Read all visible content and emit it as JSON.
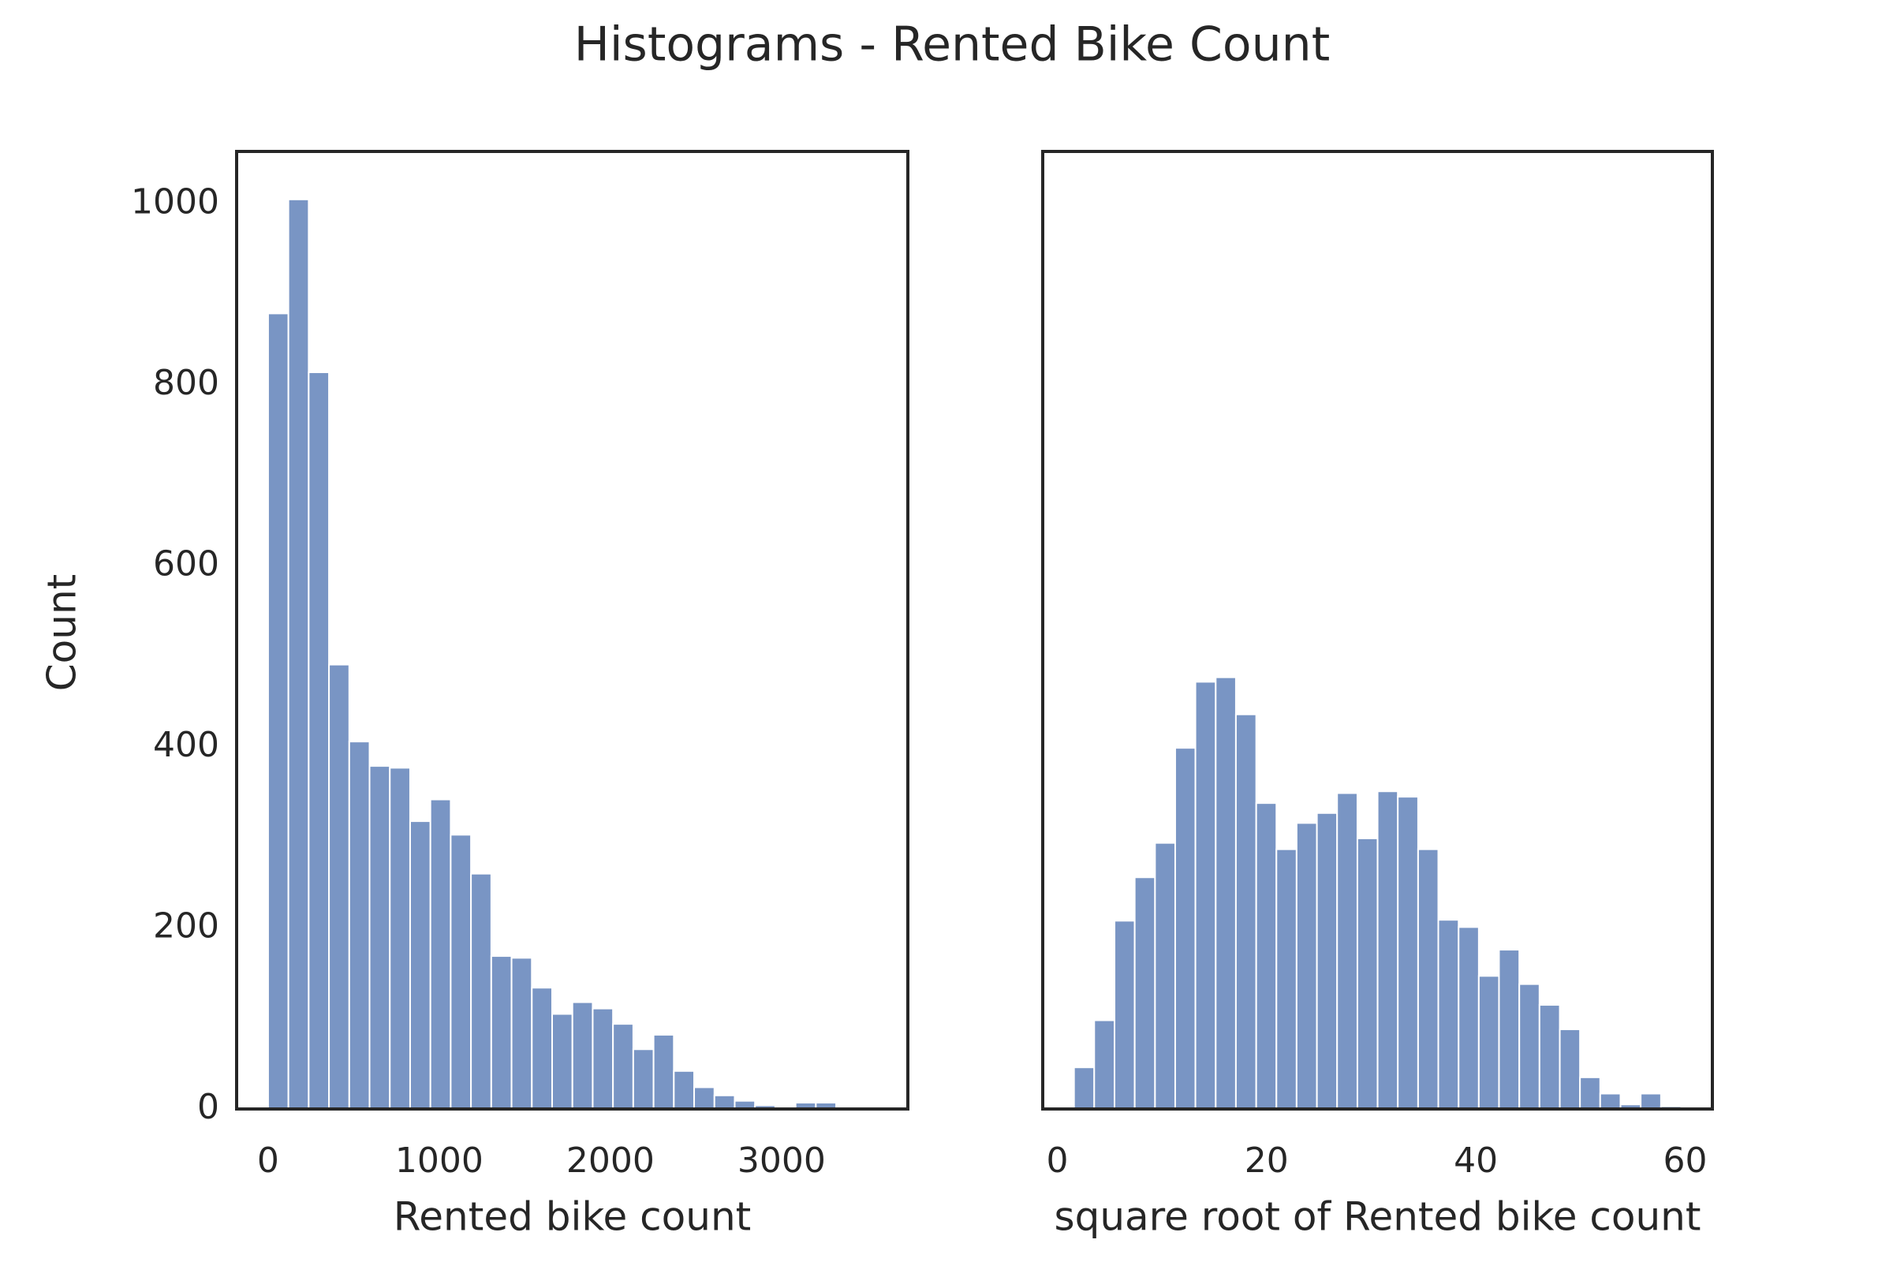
{
  "title": "Histograms - Rented Bike Count",
  "chart_data": [
    {
      "type": "histogram",
      "xlabel": "Rented bike count",
      "ylabel": "Count",
      "color": "#7995c4",
      "bins": [
        0,
        118.53,
        237.07,
        355.6,
        474.13,
        592.67,
        711.2,
        829.73,
        948.27,
        1066.8,
        1185.33,
        1303.87,
        1422.4,
        1540.93,
        1659.47,
        1778,
        1896.53,
        2015.07,
        2133.6,
        2252.13,
        2370.67,
        2489.2,
        2607.73,
        2726.27,
        2844.8,
        2963.33,
        3081.87,
        3200.4,
        3318.93,
        3437.47,
        3556
      ],
      "values": [
        879,
        1005,
        814,
        491,
        406,
        379,
        377,
        318,
        342,
        303,
        260,
        169,
        167,
        134,
        105,
        118,
        111,
        94,
        66,
        82,
        42,
        24,
        15,
        9,
        4,
        2,
        7,
        7,
        2,
        1
      ],
      "xlim": [
        -184,
        3738
      ],
      "xticks": [
        0,
        1000,
        2000,
        3000
      ],
      "ylim": [
        0,
        1058
      ],
      "yticks": [
        0,
        200,
        400,
        600,
        800,
        1000
      ]
    },
    {
      "type": "histogram",
      "xlabel": "square root of Rented bike count",
      "color": "#7995c4",
      "bins": [
        1.6,
        3.53,
        5.47,
        7.4,
        9.34,
        11.27,
        13.2,
        15.14,
        17.07,
        19.01,
        20.94,
        22.87,
        24.81,
        26.74,
        28.68,
        30.61,
        32.54,
        34.48,
        36.41,
        38.35,
        40.28,
        42.21,
        44.15,
        46.08,
        48.02,
        49.95,
        51.88,
        53.82,
        55.75,
        57.69,
        59.62
      ],
      "values": [
        46,
        98,
        208,
        256,
        294,
        399,
        472,
        477,
        436,
        338,
        287,
        316,
        327,
        349,
        299,
        351,
        345,
        287,
        209,
        201,
        147,
        176,
        138,
        115,
        88,
        35,
        17,
        5,
        17,
        3
      ],
      "xlim": [
        -1.39,
        62.6
      ],
      "xticks": [
        0,
        20,
        40,
        60
      ],
      "ylim": [
        0,
        1058
      ]
    }
  ]
}
